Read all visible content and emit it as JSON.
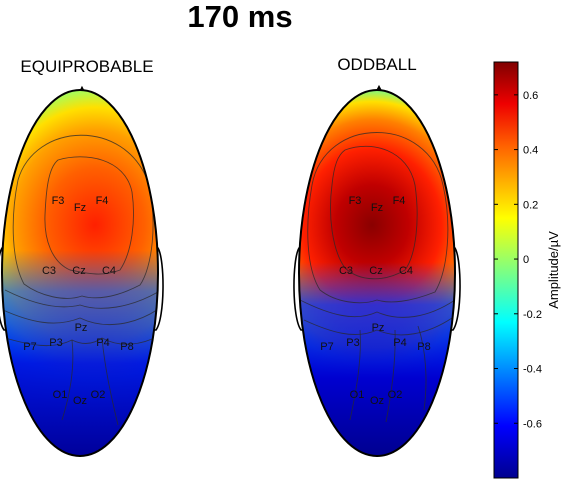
{
  "figure": {
    "title": "170 ms"
  },
  "maps": [
    {
      "label": "EQUIPROBABLE",
      "electrodes": [
        {
          "name": "F3"
        },
        {
          "name": "Fz"
        },
        {
          "name": "F4"
        },
        {
          "name": "C3"
        },
        {
          "name": "Cz"
        },
        {
          "name": "C4"
        },
        {
          "name": "P7"
        },
        {
          "name": "P3"
        },
        {
          "name": "Pz"
        },
        {
          "name": "P4"
        },
        {
          "name": "P8"
        },
        {
          "name": "O1"
        },
        {
          "name": "Oz"
        },
        {
          "name": "O2"
        }
      ]
    },
    {
      "label": "ODDBALL",
      "electrodes": [
        {
          "name": "F3"
        },
        {
          "name": "Fz"
        },
        {
          "name": "F4"
        },
        {
          "name": "C3"
        },
        {
          "name": "Cz"
        },
        {
          "name": "C4"
        },
        {
          "name": "P7"
        },
        {
          "name": "P3"
        },
        {
          "name": "Pz"
        },
        {
          "name": "P4"
        },
        {
          "name": "P8"
        },
        {
          "name": "O1"
        },
        {
          "name": "Oz"
        },
        {
          "name": "O2"
        }
      ]
    }
  ],
  "colorbar": {
    "label": "Amplitude/µV",
    "min": -0.8,
    "max": 0.72,
    "ticks": [
      "0.6",
      "0.4",
      "0.2",
      "0",
      "-0.2",
      "-0.4",
      "-0.6"
    ],
    "tick_values": [
      0.6,
      0.4,
      0.2,
      0,
      -0.2,
      -0.4,
      -0.6
    ],
    "colormap": [
      "#00008f",
      "#0000ff",
      "#00ffff",
      "#ffff00",
      "#ff8000",
      "#ff0000",
      "#800000"
    ]
  }
}
